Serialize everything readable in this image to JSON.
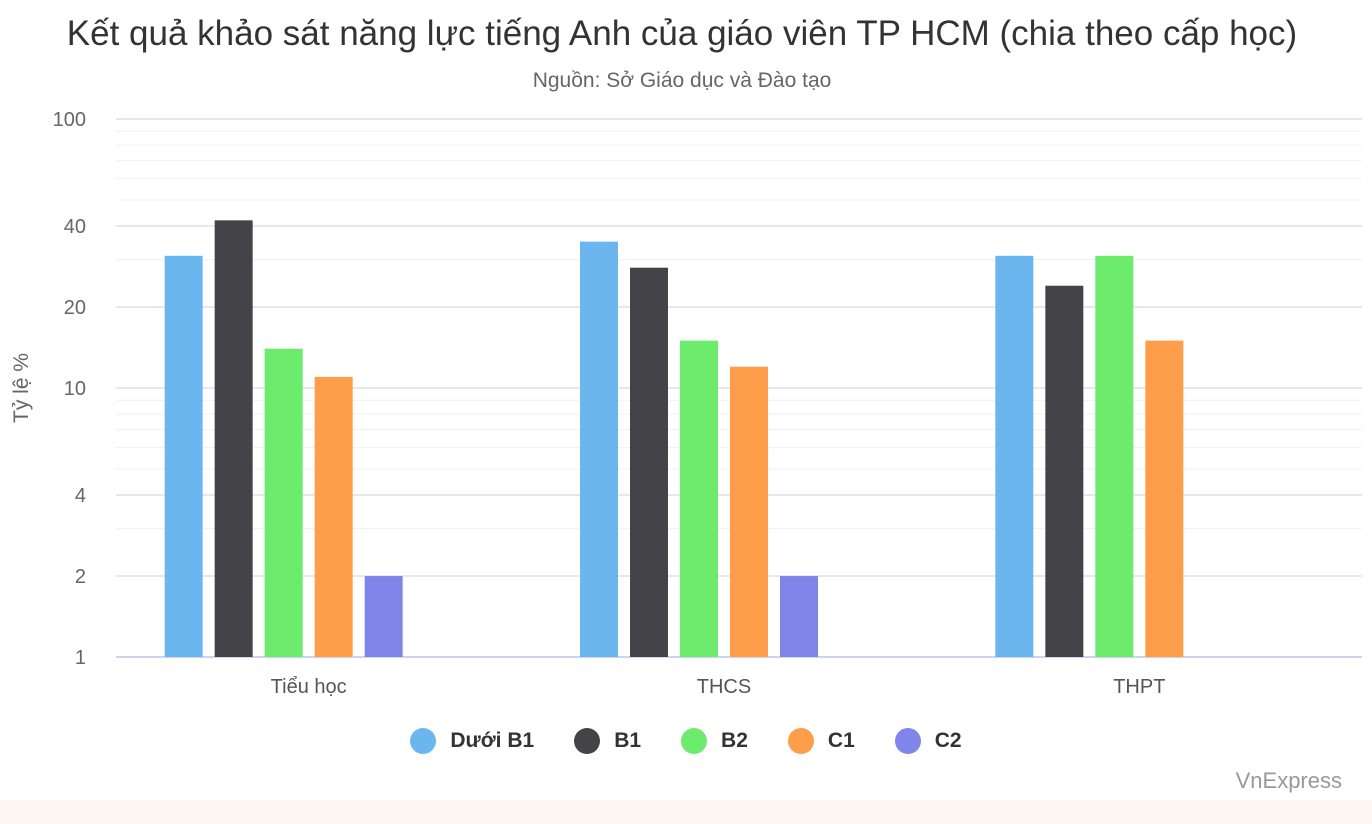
{
  "chart_data": {
    "type": "bar",
    "title": "Kết quả khảo sát năng lực tiếng Anh của giáo viên TP HCM (chia theo cấp học)",
    "subtitle": "Nguồn: Sở Giáo dục và Đào tạo",
    "ylabel": "Tỷ lệ %",
    "xlabel": "",
    "yscale": "log",
    "ylim": [
      1,
      100
    ],
    "yticks": [
      "1",
      "2",
      "4",
      "10",
      "20",
      "40",
      "100"
    ],
    "grid": true,
    "legend_position": "bottom-center",
    "categories": [
      "Tiểu học",
      "THCS",
      "THPT"
    ],
    "series": [
      {
        "name": "Dưới B1",
        "color": "#6cb6f0",
        "values": [
          31,
          35,
          31
        ]
      },
      {
        "name": "B1",
        "color": "#434348",
        "values": [
          42,
          28,
          24
        ]
      },
      {
        "name": "B2",
        "color": "#6ceb6c",
        "values": [
          14,
          15,
          31
        ]
      },
      {
        "name": "C1",
        "color": "#ff9e4a",
        "values": [
          11,
          12,
          15
        ]
      },
      {
        "name": "C2",
        "color": "#8085e9",
        "values": [
          2,
          2,
          null
        ]
      }
    ]
  },
  "credit": "VnExpress"
}
